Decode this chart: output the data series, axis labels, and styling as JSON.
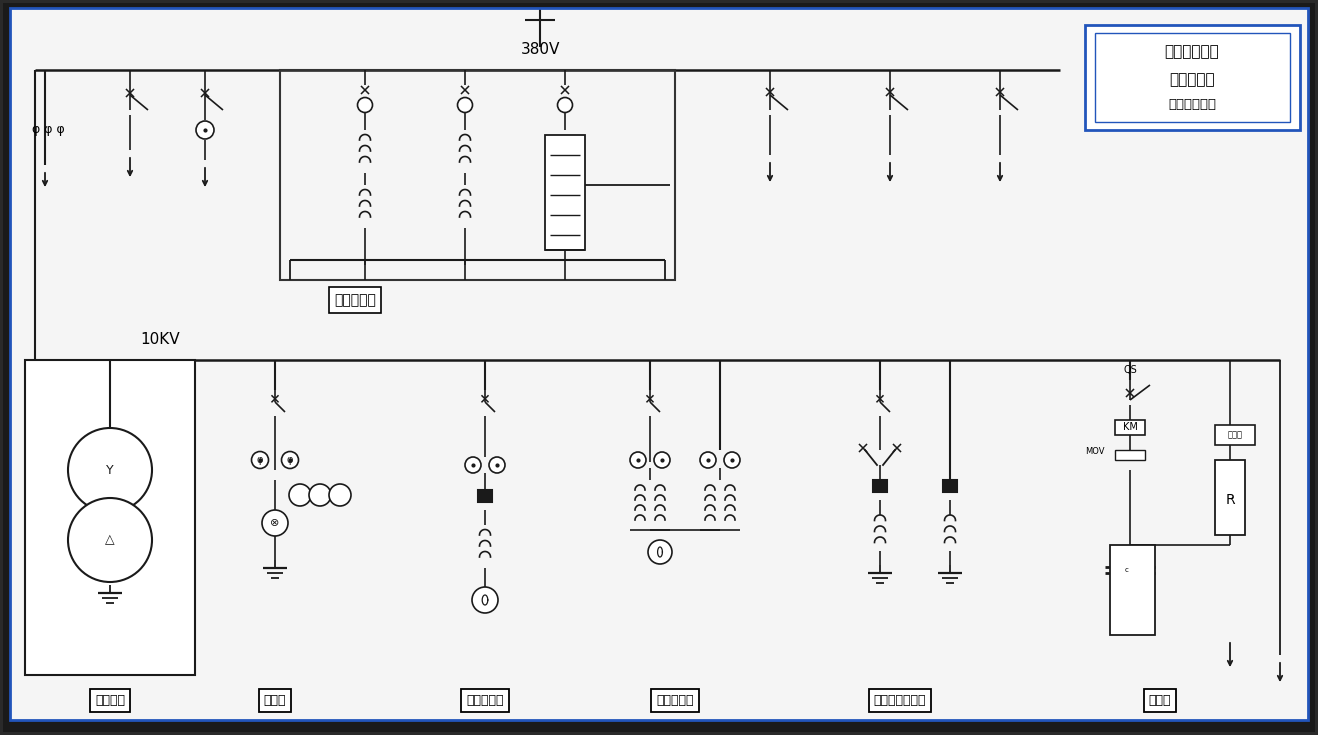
{
  "bg_outer": "#2a2a2a",
  "bg_inner": "#f5f5f5",
  "line_color": "#1a1a1a",
  "title_line1": "智能柔性电力",
  "title_line2": "装置与控制",
  "title_line3": "实验室结构图",
  "voltage_380": "380V",
  "voltage_10kv": "10KV",
  "label_low_voltage": "低压设备柜",
  "labels_bottom": [
    "变压器柜",
    "进线柜",
    "无功补偿柜",
    "高压线路柜",
    "高压开关设备柜",
    "阻容柜"
  ],
  "qs_label": "QS",
  "km_label": "KM",
  "mov_label": "MOV",
  "kongzhiqi_label": "空制器"
}
